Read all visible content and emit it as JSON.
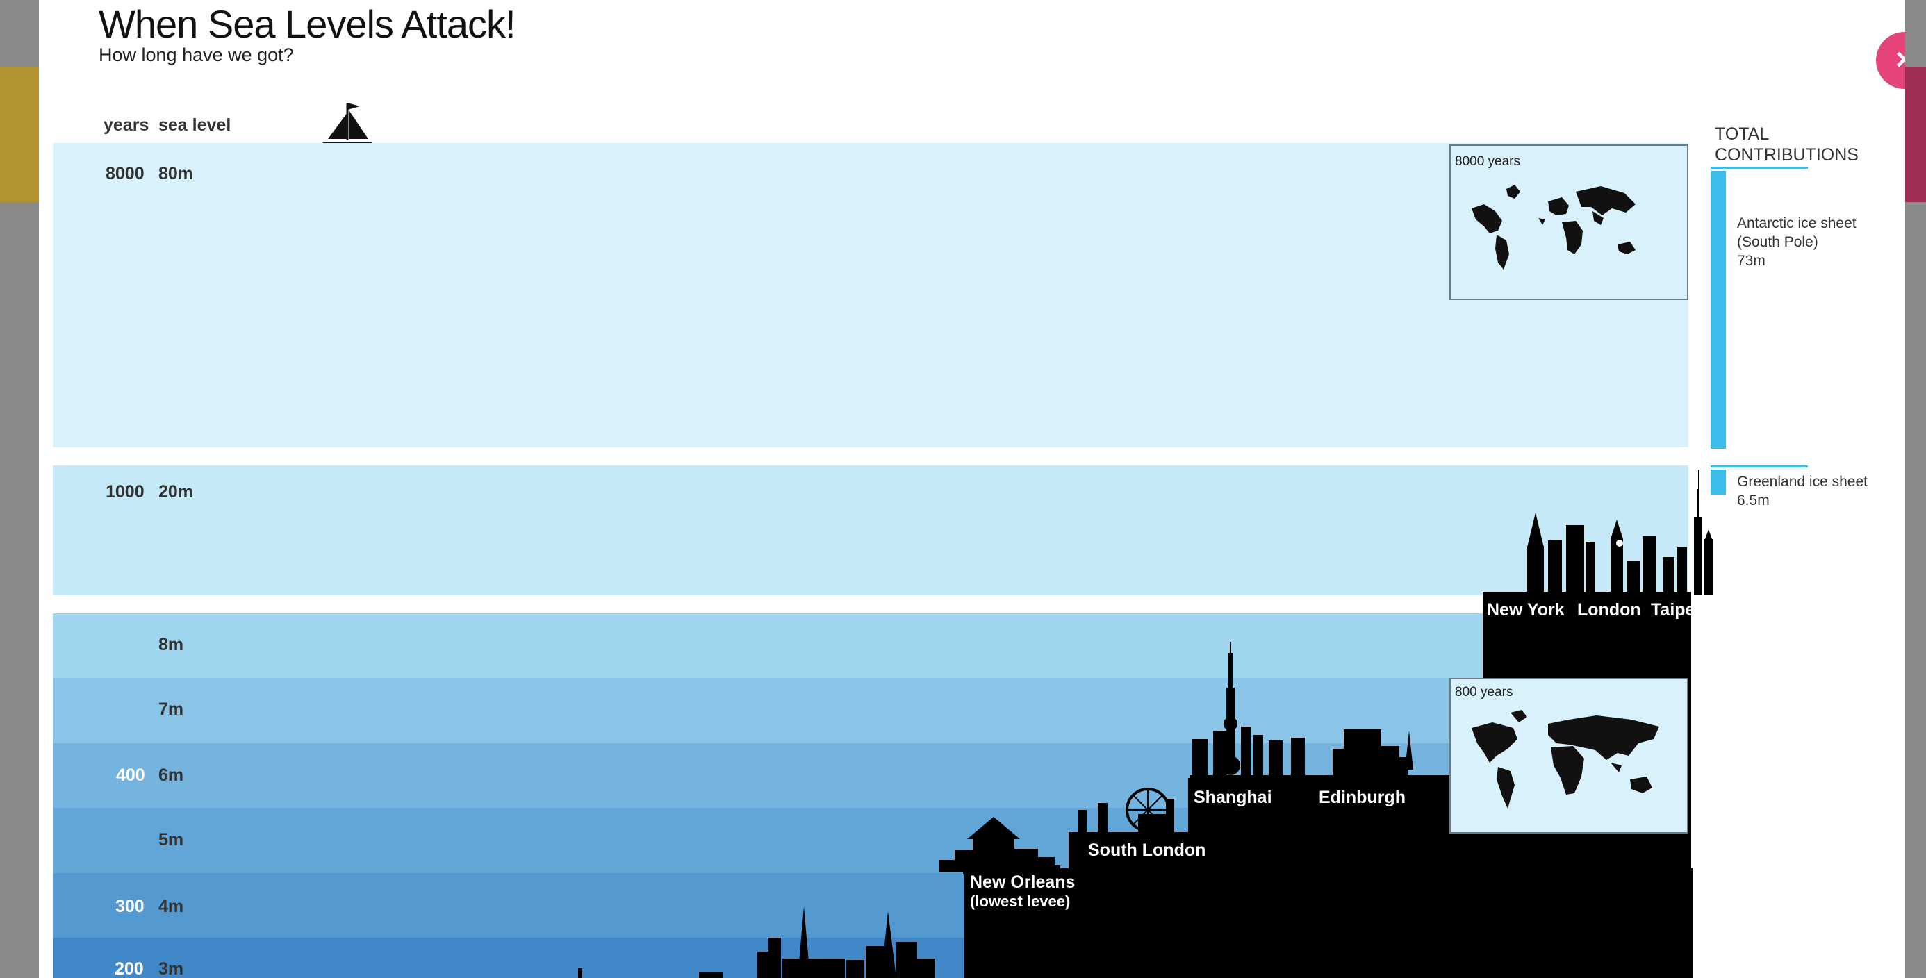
{
  "title": "When Sea Levels Attack!",
  "subtitle": "How long have we got?",
  "columns": {
    "years": "years",
    "sea_level": "sea level"
  },
  "close_label": "×",
  "chart_data": {
    "type": "bar",
    "title": "When Sea Levels Attack!",
    "subtitle": "How long have we got?",
    "bands": [
      {
        "years": "8000",
        "sea_level": "80m"
      },
      {
        "years": "1000",
        "sea_level": "20m"
      },
      {
        "years": "",
        "sea_level": "8m"
      },
      {
        "years": "",
        "sea_level": "7m"
      },
      {
        "years": "400",
        "sea_level": "6m"
      },
      {
        "years": "",
        "sea_level": "5m"
      },
      {
        "years": "300",
        "sea_level": "4m"
      },
      {
        "years": "200",
        "sea_level": "3m"
      }
    ],
    "cities": [
      {
        "name": "New York",
        "flood_level_m": 20
      },
      {
        "name": "London",
        "flood_level_m": 20
      },
      {
        "name": "Taipei",
        "flood_level_m": 20
      },
      {
        "name": "Shanghai",
        "flood_level_m": 6
      },
      {
        "name": "Edinburgh",
        "flood_level_m": 6
      },
      {
        "name": "South London",
        "flood_level_m": 5.2
      },
      {
        "name": "New Orleans",
        "note": "(lowest levee)",
        "flood_level_m": 4.5
      }
    ],
    "maps": [
      {
        "label": "8000 years"
      },
      {
        "label": "800 years"
      }
    ],
    "contributions": {
      "heading_line1": "TOTAL",
      "heading_line2": "CONTRIBUTIONS",
      "items": [
        {
          "line1": "Antarctic ice sheet",
          "line2": "(South Pole)",
          "line3": "73m",
          "value_m": 73
        },
        {
          "line1": "Greenland ice sheet",
          "line2": "6.5m",
          "value_m": 6.5
        }
      ]
    }
  },
  "colors": {
    "band_80": "#d8f1fb",
    "band_20": "#c6e9f8",
    "band_8": "#a0d5ef",
    "band_7": "#8ac5e7",
    "band_6": "#74b4de",
    "band_5": "#62a6d7",
    "band_4": "#5499d0",
    "band_3": "#4088c8",
    "contribution_bar": "#3bbce9",
    "close": "#e6437a"
  }
}
